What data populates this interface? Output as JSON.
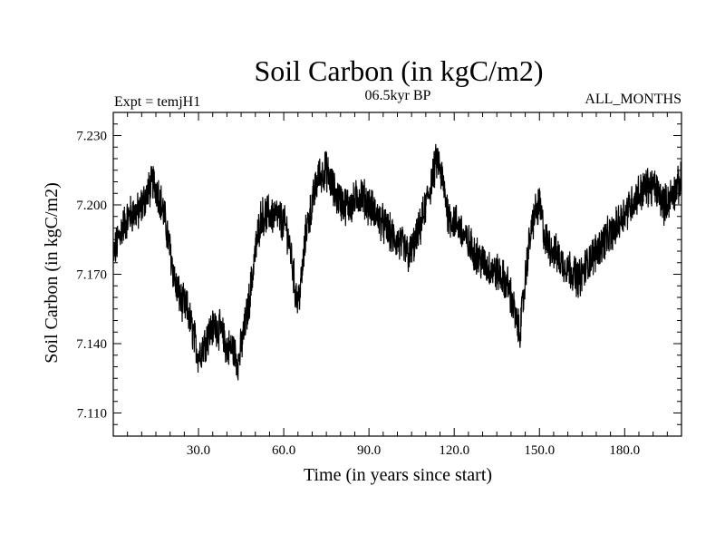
{
  "chart_data": {
    "type": "line",
    "title": "Soil Carbon (in kgC/m2)",
    "subtitle_left": "Expt = temjH1",
    "subtitle_center": "06.5kyr BP",
    "subtitle_right": "ALL_MONTHS",
    "xlabel": "Time (in years since start)",
    "ylabel": "Soil Carbon (in kgC/m2)",
    "xlim": [
      0,
      200
    ],
    "ylim": [
      7.1,
      7.24
    ],
    "xticks": [
      30,
      60,
      90,
      120,
      150,
      180
    ],
    "xtick_labels": [
      "30.0",
      "60.0",
      "90.0",
      "120.0",
      "150.0",
      "180.0"
    ],
    "yticks": [
      7.11,
      7.14,
      7.17,
      7.2,
      7.23
    ],
    "ytick_labels": [
      "7.110",
      "7.140",
      "7.170",
      "7.200",
      "7.230"
    ],
    "grid": false,
    "sampling": "monthly (12 samples per year)",
    "noise_amplitude": 0.0075,
    "series": [
      {
        "name": "Soil Carbon",
        "color": "#000000",
        "trend": {
          "x": [
            0,
            3,
            6,
            9,
            12,
            14,
            16,
            18,
            20,
            22,
            24,
            26,
            28,
            30,
            32,
            34,
            36,
            38,
            40,
            42,
            44,
            46,
            48,
            50,
            52,
            55,
            58,
            61,
            63,
            64,
            65,
            66,
            68,
            70,
            72,
            75,
            78,
            81,
            84,
            87,
            90,
            93,
            96,
            99,
            102,
            104,
            106,
            108,
            110,
            112,
            114,
            116,
            118,
            121,
            124,
            127,
            130,
            133,
            136,
            139,
            141,
            142,
            143,
            144,
            146,
            148,
            150,
            152,
            155,
            158,
            161,
            164,
            167,
            170,
            173,
            176,
            179,
            182,
            185,
            188,
            191,
            194,
            197,
            200
          ],
          "y": [
            7.178,
            7.19,
            7.196,
            7.197,
            7.205,
            7.21,
            7.205,
            7.195,
            7.18,
            7.165,
            7.158,
            7.155,
            7.145,
            7.135,
            7.14,
            7.145,
            7.148,
            7.145,
            7.138,
            7.138,
            7.132,
            7.145,
            7.16,
            7.18,
            7.195,
            7.196,
            7.195,
            7.19,
            7.175,
            7.163,
            7.158,
            7.165,
            7.19,
            7.2,
            7.212,
            7.215,
            7.205,
            7.2,
            7.2,
            7.205,
            7.2,
            7.195,
            7.19,
            7.185,
            7.182,
            7.178,
            7.183,
            7.19,
            7.2,
            7.21,
            7.22,
            7.21,
            7.195,
            7.192,
            7.185,
            7.18,
            7.175,
            7.172,
            7.17,
            7.165,
            7.155,
            7.148,
            7.145,
            7.155,
            7.18,
            7.195,
            7.2,
            7.185,
            7.18,
            7.175,
            7.172,
            7.168,
            7.175,
            7.18,
            7.185,
            7.188,
            7.195,
            7.2,
            7.205,
            7.208,
            7.207,
            7.2,
            7.205,
            7.21
          ]
        }
      }
    ]
  }
}
